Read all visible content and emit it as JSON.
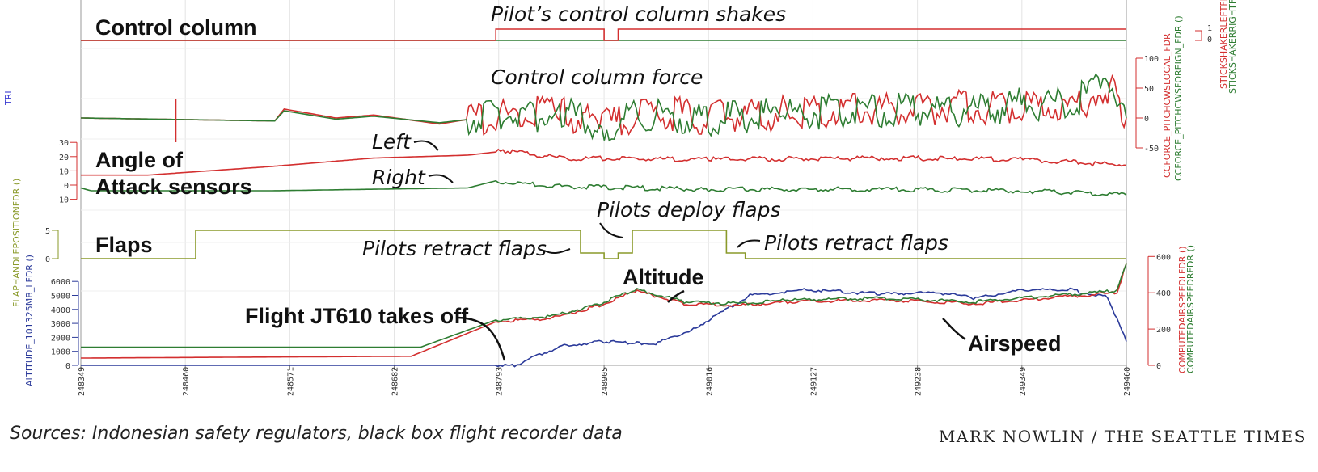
{
  "chart_data": {
    "type": "line",
    "x_ticks": [
      "248349",
      "248460",
      "248571",
      "248682",
      "248793",
      "248905",
      "249016",
      "249127",
      "249238",
      "249349",
      "249460"
    ],
    "xlim": [
      248349,
      249460
    ],
    "panels": [
      {
        "id": "control_column",
        "label": "Control column",
        "axis_labels": [
          "STICKSHAKERLEFTFDR",
          "STICKSHAKERRIGHTFDR"
        ],
        "axis_ticks": [
          "1",
          "0"
        ],
        "annotations": [
          "Pilot’s control column shakes"
        ],
        "series": [
          {
            "color": "#2e7d32",
            "points": [
              [
                248349,
                0
              ],
              [
                249460,
                0
              ]
            ]
          },
          {
            "color": "#d32f2f",
            "points": [
              [
                248349,
                0
              ],
              [
                248790,
                0
              ],
              [
                248790,
                1
              ],
              [
                248905,
                1
              ],
              [
                248905,
                0
              ],
              [
                248920,
                0
              ],
              [
                248920,
                1
              ],
              [
                249460,
                1
              ]
            ]
          }
        ]
      },
      {
        "id": "control_column_force",
        "label": "Control column force",
        "axis_labels": [
          "CCFORCE_PITCHCWSLOCAL_FDR",
          "CCFORCE_PITCHCWSFOREIGN_FDR ()"
        ],
        "ylim": [
          -50,
          100
        ],
        "y_ticks": [
          "100",
          "50",
          "0",
          "-50"
        ],
        "series": [
          {
            "color": "#d32f2f",
            "points": [
              [
                248349,
                0
              ],
              [
                248555,
                -5
              ],
              [
                248565,
                15
              ],
              [
                248620,
                0
              ],
              [
                248660,
                5
              ],
              [
                248730,
                -10
              ],
              [
                248790,
                5
              ],
              [
                248860,
                10
              ],
              [
                248900,
                -15
              ],
              [
                248960,
                10
              ],
              [
                249016,
                0
              ],
              [
                249100,
                10
              ],
              [
                249200,
                15
              ],
              [
                249300,
                18
              ],
              [
                249400,
                20
              ],
              [
                249430,
                40
              ],
              [
                249445,
                55
              ],
              [
                249460,
                0
              ]
            ]
          },
          {
            "color": "#2e7d32",
            "points": [
              [
                248349,
                0
              ],
              [
                248555,
                -5
              ],
              [
                248565,
                12
              ],
              [
                248620,
                -2
              ],
              [
                248660,
                3
              ],
              [
                248730,
                -8
              ],
              [
                248790,
                3
              ],
              [
                248860,
                8
              ],
              [
                248900,
                -12
              ],
              [
                248960,
                8
              ],
              [
                249016,
                -2
              ],
              [
                249100,
                8
              ],
              [
                249200,
                12
              ],
              [
                249300,
                16
              ],
              [
                249400,
                28
              ],
              [
                249430,
                45
              ],
              [
                249445,
                60
              ],
              [
                249460,
                0
              ]
            ]
          }
        ]
      },
      {
        "id": "angle_of_attack",
        "label": "Angle of Attack sensors",
        "axis_labels": [
          "TRI",
          "FLAPHANDLEPOSITIONFDR ()"
        ],
        "ylim": [
          -10,
          30
        ],
        "y_ticks": [
          "30",
          "20",
          "10",
          "0",
          "-10"
        ],
        "annotations": [
          "Left",
          "Right"
        ],
        "series": [
          {
            "name": "Left",
            "color": "#d32f2f",
            "points": [
              [
                248349,
                7
              ],
              [
                248360,
                7
              ],
              [
                248420,
                7
              ],
              [
                248550,
                13
              ],
              [
                248660,
                19
              ],
              [
                248760,
                21
              ],
              [
                248800,
                24
              ],
              [
                248860,
                19
              ],
              [
                249016,
                18
              ],
              [
                249200,
                19
              ],
              [
                249350,
                18
              ],
              [
                249460,
                14
              ]
            ]
          },
          {
            "name": "Right",
            "color": "#2e7d32",
            "points": [
              [
                248349,
                -2
              ],
              [
                248360,
                -4
              ],
              [
                248550,
                -4
              ],
              [
                248650,
                -3
              ],
              [
                248760,
                -2
              ],
              [
                248790,
                3
              ],
              [
                248850,
                -1
              ],
              [
                249016,
                -3
              ],
              [
                249200,
                -3
              ],
              [
                249350,
                -4
              ],
              [
                249460,
                -7
              ]
            ]
          }
        ]
      },
      {
        "id": "flaps",
        "label": "Flaps",
        "y_ticks": [
          "5",
          "0"
        ],
        "annotations": [
          "Pilots retract flaps",
          "Pilots deploy flaps",
          "Pilots retract flaps"
        ],
        "series": [
          {
            "color": "#8a9a2a",
            "points": [
              [
                248349,
                0
              ],
              [
                248471,
                0
              ],
              [
                248471,
                5
              ],
              [
                248880,
                5
              ],
              [
                248880,
                1
              ],
              [
                248905,
                1
              ],
              [
                248905,
                0
              ],
              [
                248920,
                0
              ],
              [
                248920,
                1
              ],
              [
                248935,
                1
              ],
              [
                248935,
                5
              ],
              [
                249035,
                5
              ],
              [
                249035,
                1
              ],
              [
                249055,
                1
              ],
              [
                249055,
                0
              ],
              [
                249460,
                0
              ]
            ]
          }
        ]
      },
      {
        "id": "altitude_airspeed",
        "axis_labels": [
          "ALTITUDE_101325MB_LFDR ()",
          "COMPUTEDAIRSPEEDLFDR ()",
          "COMPUTEDAIRSPEEDRFDR ()"
        ],
        "ylim_left": [
          0,
          6000
        ],
        "y_ticks_left": [
          "6000",
          "5000",
          "4000",
          "3000",
          "2000",
          "1000",
          "0"
        ],
        "ylim_right": [
          0,
          600
        ],
        "y_ticks_right": [
          "600",
          "400",
          "200",
          "0"
        ],
        "annotations": [
          "Altitude",
          "Flight JT610 takes off",
          "Airspeed"
        ],
        "series": [
          {
            "name": "Altitude",
            "color": "#2b3a9a",
            "axis": "left",
            "points": [
              [
                248349,
                0
              ],
              [
                248810,
                0
              ],
              [
                248860,
                1400
              ],
              [
                248905,
                1700
              ],
              [
                248940,
                1600
              ],
              [
                248960,
                1550
              ],
              [
                249000,
                2600
              ],
              [
                249060,
                5000
              ],
              [
                249120,
                5400
              ],
              [
                249200,
                5100
              ],
              [
                249260,
                5200
              ],
              [
                249300,
                4800
              ],
              [
                249350,
                5400
              ],
              [
                249400,
                5400
              ],
              [
                249440,
                4900
              ],
              [
                249460,
                1700
              ]
            ]
          },
          {
            "name": "Airspeed L",
            "color": "#d32f2f",
            "axis": "right",
            "points": [
              [
                248349,
                40
              ],
              [
                248700,
                50
              ],
              [
                248790,
                240
              ],
              [
                248850,
                260
              ],
              [
                248900,
                330
              ],
              [
                248940,
                410
              ],
              [
                248990,
                340
              ],
              [
                249050,
                330
              ],
              [
                249100,
                350
              ],
              [
                249200,
                360
              ],
              [
                249300,
                340
              ],
              [
                249400,
                380
              ],
              [
                249450,
                400
              ],
              [
                249460,
                560
              ]
            ]
          },
          {
            "name": "Airspeed R",
            "color": "#2e7d32",
            "axis": "right",
            "points": [
              [
                248349,
                100
              ],
              [
                248710,
                100
              ],
              [
                248790,
                250
              ],
              [
                248850,
                270
              ],
              [
                248900,
                340
              ],
              [
                248940,
                420
              ],
              [
                248990,
                350
              ],
              [
                249050,
                340
              ],
              [
                249100,
                360
              ],
              [
                249200,
                370
              ],
              [
                249300,
                350
              ],
              [
                249400,
                390
              ],
              [
                249450,
                410
              ],
              [
                249460,
                560
              ]
            ]
          }
        ]
      }
    ]
  },
  "footer": {
    "sources": "Sources: Indonesian safety regulators, black box flight recorder data",
    "credit": "MARK NOWLIN / THE SEATTLE TIMES"
  }
}
